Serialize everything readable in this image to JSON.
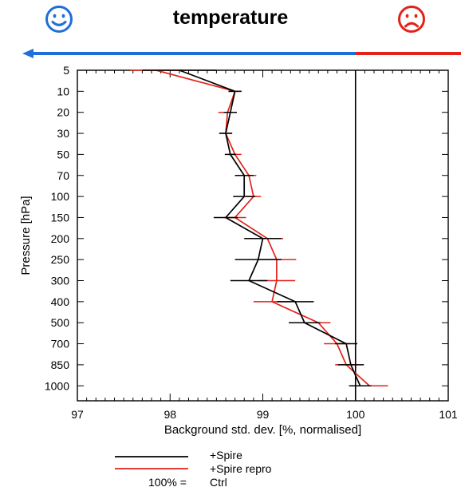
{
  "header": {
    "title": "temperature",
    "good_icon": "smiley-face-icon",
    "bad_icon": "sad-face-icon",
    "good_color": "#1e6fd9",
    "bad_color": "#e2231a"
  },
  "chart_data": {
    "type": "line",
    "orientation": "vertical-profile",
    "xlabel": "Background std. dev. [%, normalised]",
    "ylabel": "Pressure [hPa]",
    "xlim": [
      97,
      101
    ],
    "x_ticks": [
      "97",
      "98",
      "99",
      "100",
      "101"
    ],
    "y_categories": [
      "5",
      "10",
      "20",
      "30",
      "50",
      "70",
      "100",
      "150",
      "200",
      "250",
      "300",
      "400",
      "500",
      "700",
      "850",
      "1000"
    ],
    "reference_line_x": 100,
    "series": [
      {
        "name": "+Spire",
        "color": "#000000",
        "values": [
          98.1,
          98.7,
          98.65,
          98.6,
          98.65,
          98.8,
          98.8,
          98.6,
          99.0,
          98.95,
          98.85,
          99.35,
          99.45,
          99.9,
          99.95,
          100.05
        ],
        "error": [
          0.4,
          0.07,
          0.07,
          0.07,
          0.06,
          0.1,
          0.12,
          0.13,
          0.2,
          0.25,
          0.2,
          0.2,
          0.17,
          0.12,
          0.14,
          0.12
        ]
      },
      {
        "name": "+Spire repro",
        "color": "#e2231a",
        "values": [
          97.85,
          98.7,
          98.62,
          98.6,
          98.7,
          98.85,
          98.9,
          98.7,
          99.05,
          99.15,
          99.15,
          99.1,
          99.6,
          99.8,
          99.9,
          100.15
        ],
        "error": [
          0.28,
          0.07,
          0.1,
          0.07,
          0.07,
          0.08,
          0.08,
          0.12,
          0.17,
          0.21,
          0.2,
          0.2,
          0.13,
          0.14,
          0.12,
          0.2
        ]
      }
    ],
    "legend": {
      "position": "bottom",
      "entries": [
        "+Spire",
        "+Spire repro",
        "Ctrl"
      ],
      "reference_prefix": "100% ="
    }
  }
}
